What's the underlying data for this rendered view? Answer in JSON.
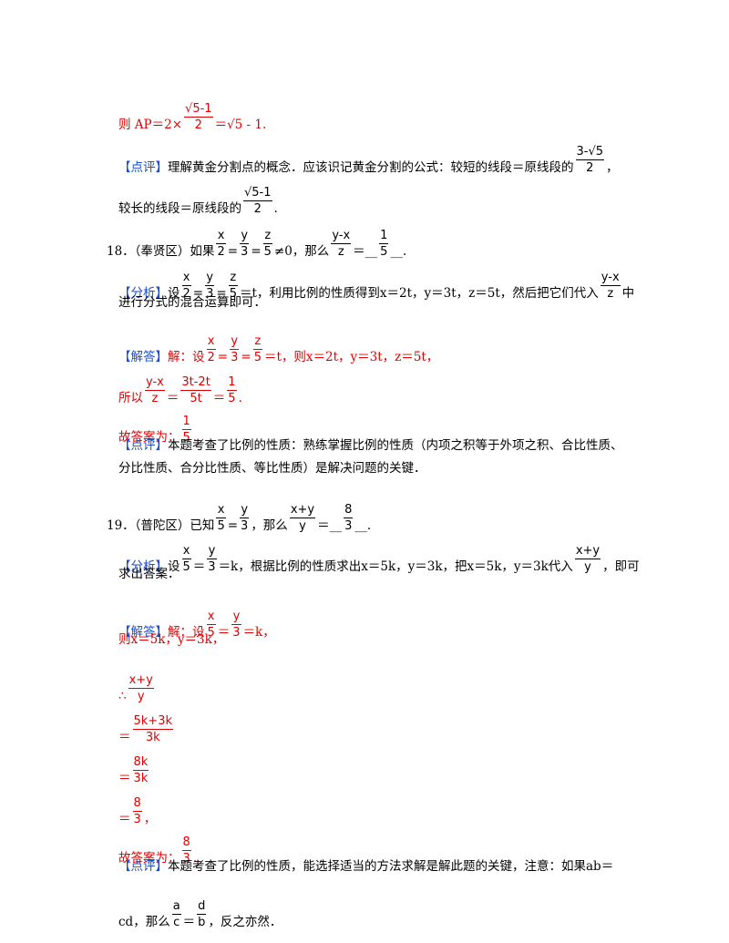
{
  "lines": [
    [
      "则 AP＝2×",
      {
        "num": "√5-1",
        "den": "2"
      },
      "＝√5 - 1."
    ],
    [
      "【点评】",
      "理解黄金分割点的概念．应该识记黄金分割的公式：较短的线段＝原线段的",
      {
        "num": "3-√5",
        "den": "2"
      },
      "，"
    ],
    [
      "较长的线段＝原线段的",
      {
        "num": "√5-1",
        "den": "2"
      },
      "."
    ],
    [
      "18．（奉贤区）如果",
      {
        "num": "x",
        "den": "2"
      },
      "=",
      {
        "num": "y",
        "den": "3"
      },
      "=",
      {
        "num": "z",
        "den": "5"
      },
      "≠0，那么",
      {
        "num": "y-x",
        "den": "z"
      },
      "＝__",
      {
        "num": "1",
        "den": "5"
      },
      "__."
    ],
    [
      "【分析】",
      "设",
      {
        "num": "x",
        "den": "2"
      },
      "=",
      {
        "num": "y",
        "den": "3"
      },
      "=",
      {
        "num": "z",
        "den": "5"
      },
      "＝t，利用比例的性质得到x＝2t，y＝3t，z＝5t，然后把它们代入",
      {
        "num": "y-x",
        "den": "z"
      },
      "中"
    ],
    [
      "进行分式的混合运算即可．"
    ],
    [
      "【解答】",
      "解：设",
      {
        "num": "x",
        "den": "2"
      },
      "=",
      {
        "num": "y",
        "den": "3"
      },
      "=",
      {
        "num": "z",
        "den": "5"
      },
      "＝t，则x＝2t，y＝3t，z＝5t，"
    ],
    [
      "所以",
      {
        "num": "y-x",
        "den": "z"
      },
      "＝",
      {
        "num": "3t-2t",
        "den": "5t"
      },
      "＝",
      {
        "num": "1",
        "den": "5"
      },
      "."
    ],
    [
      "故答案为：",
      {
        "num": "1",
        "den": "5"
      },
      "."
    ],
    [
      "【点评】",
      "本题考查了比例的性质：熟练掌握比例的性质（内项之积等于外项之积、合比性质、"
    ],
    [
      "分比性质、合分比性质、等比性质）是解决问题的关键．"
    ],
    [
      "19．（普陀区）已知",
      {
        "num": "x",
        "den": "5"
      },
      "=",
      {
        "num": "y",
        "den": "3"
      },
      "，那么",
      {
        "num": "x+y",
        "den": "y"
      },
      "＝__",
      {
        "num": "8",
        "den": "3"
      },
      "__."
    ],
    [
      "【分析】",
      "设",
      {
        "num": "x",
        "den": "5"
      },
      "＝",
      {
        "num": "y",
        "den": "3"
      },
      "＝k，根据比例的性质求出x＝5k，y＝3k，把x＝5k，y＝3k代入",
      {
        "num": "x+y",
        "den": "y"
      },
      "，即可"
    ],
    [
      "求出答案．"
    ],
    [
      "【解答】",
      "解：设",
      {
        "num": "x",
        "den": "5"
      },
      "＝",
      {
        "num": "y",
        "den": "3"
      },
      "＝k，"
    ],
    [
      "则x＝5k，y＝3k，"
    ],
    [
      "∴",
      {
        "num": "x+y",
        "den": "y"
      }
    ],
    [
      "＝",
      {
        "num": "5k+3k",
        "den": "3k"
      }
    ],
    [
      "＝",
      {
        "num": "8k",
        "den": "3k"
      }
    ],
    [
      "＝",
      {
        "num": "8",
        "den": "3"
      },
      "，"
    ],
    [
      "故答案为：",
      {
        "num": "8",
        "den": "3"
      },
      "."
    ],
    [
      "【点评】",
      "本题考查了比例的性质，能选择适当的方法求解是解此题的关键，注意：如果ab＝"
    ],
    [
      "cd，那么",
      {
        "num": "a",
        "den": "c"
      },
      "＝",
      {
        "num": "d",
        "den": "b"
      },
      "，反之亦然．"
    ]
  ]
}
